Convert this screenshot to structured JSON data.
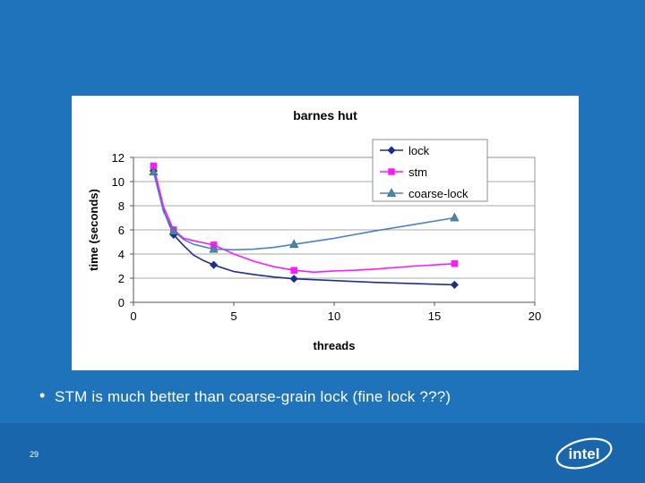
{
  "slide": {
    "bullet_symbol": "•",
    "bullet_text": "STM is much better than coarse-grain lock (fine lock ???)",
    "slide_number": "29",
    "logo_text": "intel"
  },
  "colors": {
    "background": "#1f73ba",
    "lock": "#1f2f86",
    "stm": "#ff19ff",
    "coarse_lock": "#4a82c6"
  },
  "chart_data": {
    "type": "line",
    "title": "barnes hut",
    "xlabel": "threads",
    "ylabel": "time (seconds)",
    "xlim": [
      0,
      20
    ],
    "ylim": [
      0,
      12
    ],
    "x_ticks": [
      0,
      5,
      10,
      15,
      20
    ],
    "y_ticks": [
      0,
      2,
      4,
      6,
      8,
      10,
      12
    ],
    "grid": "horizontal",
    "legend_position": "top-right",
    "series": [
      {
        "name": "lock",
        "marker": "diamond",
        "color": "#1f2f86",
        "markers": [
          [
            1,
            10.9
          ],
          [
            2,
            5.6
          ],
          [
            4,
            3.1
          ],
          [
            8,
            1.95
          ],
          [
            16,
            1.45
          ]
        ],
        "curve": [
          [
            1,
            10.9
          ],
          [
            1.5,
            7.6
          ],
          [
            2,
            5.6
          ],
          [
            2.5,
            4.7
          ],
          [
            3,
            3.9
          ],
          [
            3.5,
            3.45
          ],
          [
            4,
            3.1
          ],
          [
            5,
            2.55
          ],
          [
            6,
            2.3
          ],
          [
            7,
            2.1
          ],
          [
            8,
            1.95
          ],
          [
            10,
            1.8
          ],
          [
            12,
            1.65
          ],
          [
            14,
            1.55
          ],
          [
            16,
            1.45
          ]
        ]
      },
      {
        "name": "stm",
        "marker": "square",
        "color": "#ff19ff",
        "markers": [
          [
            1,
            11.3
          ],
          [
            2,
            6.0
          ],
          [
            4,
            4.75
          ],
          [
            8,
            2.65
          ],
          [
            16,
            3.2
          ]
        ],
        "curve": [
          [
            1,
            11.3
          ],
          [
            1.5,
            7.9
          ],
          [
            2,
            6.0
          ],
          [
            2.5,
            5.3
          ],
          [
            3,
            5.1
          ],
          [
            4,
            4.75
          ],
          [
            5,
            4.0
          ],
          [
            6,
            3.4
          ],
          [
            7,
            2.95
          ],
          [
            8,
            2.65
          ],
          [
            9,
            2.5
          ],
          [
            10,
            2.6
          ],
          [
            11,
            2.65
          ],
          [
            12,
            2.75
          ],
          [
            14,
            3.0
          ],
          [
            16,
            3.2
          ]
        ]
      },
      {
        "name": "coarse-lock",
        "marker": "triangle",
        "color": "#4a82c6",
        "markers": [
          [
            1,
            10.8
          ],
          [
            2,
            5.9
          ],
          [
            4,
            4.4
          ],
          [
            8,
            4.8
          ],
          [
            16,
            7.0
          ]
        ],
        "curve": [
          [
            1,
            10.8
          ],
          [
            1.5,
            7.5
          ],
          [
            2,
            5.9
          ],
          [
            2.5,
            5.2
          ],
          [
            3,
            4.8
          ],
          [
            4,
            4.4
          ],
          [
            5,
            4.35
          ],
          [
            6,
            4.4
          ],
          [
            7,
            4.55
          ],
          [
            8,
            4.8
          ],
          [
            10,
            5.3
          ],
          [
            12,
            5.9
          ],
          [
            14,
            6.45
          ],
          [
            16,
            7.0
          ]
        ]
      }
    ]
  }
}
